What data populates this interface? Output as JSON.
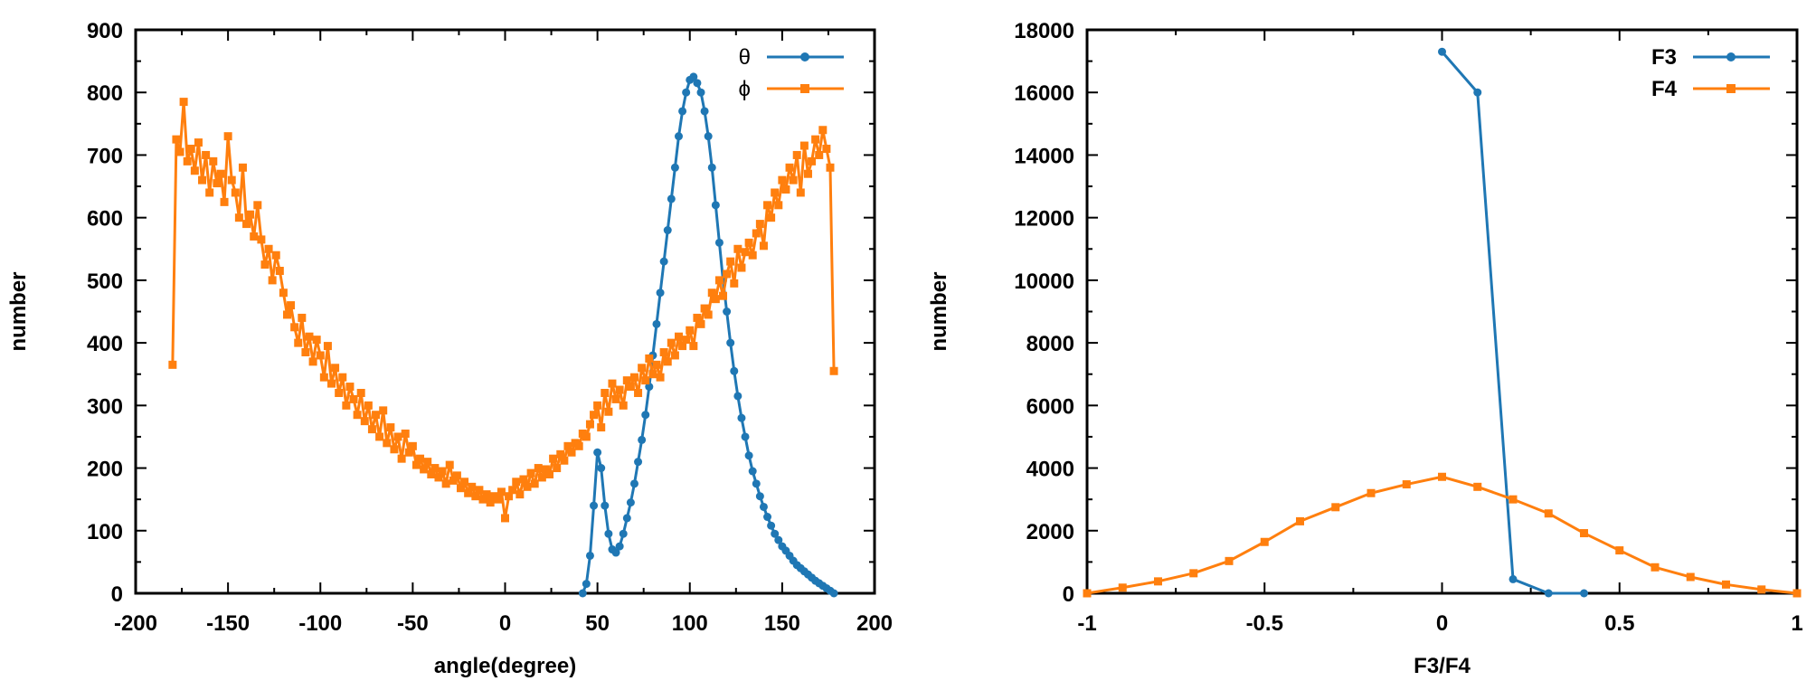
{
  "colors": {
    "blue": "#1f77b4",
    "orange": "#ff7f0e",
    "axis": "#000000"
  },
  "chart_data": [
    {
      "type": "line",
      "xlabel": "angle(degree)",
      "ylabel": "number",
      "xlim": [
        -200,
        200
      ],
      "ylim": [
        0,
        900
      ],
      "xticks": [
        "-200",
        "-150",
        "-100",
        "-50",
        "0",
        "50",
        "100",
        "150",
        "200"
      ],
      "yticks": [
        "0",
        "100",
        "200",
        "300",
        "400",
        "500",
        "600",
        "700",
        "800",
        "900"
      ],
      "legend_position": "top-right",
      "series": [
        {
          "name": "θ",
          "color": "#1f77b4",
          "marker": "circle",
          "x": [
            42,
            44,
            46,
            48,
            50,
            52,
            54,
            56,
            58,
            60,
            62,
            64,
            66,
            68,
            70,
            72,
            74,
            76,
            78,
            80,
            82,
            84,
            86,
            88,
            90,
            92,
            94,
            96,
            98,
            100,
            102,
            104,
            106,
            108,
            110,
            112,
            114,
            116,
            118,
            120,
            122,
            124,
            126,
            128,
            130,
            132,
            134,
            136,
            138,
            140,
            142,
            144,
            146,
            148,
            150,
            152,
            154,
            156,
            158,
            160,
            162,
            164,
            166,
            168,
            170,
            172,
            174,
            176,
            178
          ],
          "y": [
            0,
            15,
            60,
            140,
            225,
            200,
            140,
            95,
            70,
            65,
            75,
            95,
            120,
            145,
            175,
            210,
            245,
            285,
            330,
            380,
            430,
            480,
            530,
            580,
            630,
            680,
            730,
            770,
            800,
            820,
            825,
            815,
            800,
            770,
            730,
            680,
            620,
            560,
            500,
            450,
            400,
            355,
            315,
            280,
            250,
            220,
            195,
            175,
            155,
            138,
            122,
            108,
            95,
            85,
            75,
            68,
            60,
            52,
            45,
            40,
            35,
            30,
            25,
            20,
            16,
            12,
            8,
            4,
            0
          ]
        },
        {
          "name": "ϕ",
          "color": "#ff7f0e",
          "marker": "square",
          "x": [
            -180,
            -178,
            -176,
            -174,
            -172,
            -170,
            -168,
            -166,
            -164,
            -162,
            -160,
            -158,
            -156,
            -154,
            -152,
            -150,
            -148,
            -146,
            -144,
            -142,
            -140,
            -138,
            -136,
            -134,
            -132,
            -130,
            -128,
            -126,
            -124,
            -122,
            -120,
            -118,
            -116,
            -114,
            -112,
            -110,
            -108,
            -106,
            -104,
            -102,
            -100,
            -98,
            -96,
            -94,
            -92,
            -90,
            -88,
            -86,
            -84,
            -82,
            -80,
            -78,
            -76,
            -74,
            -72,
            -70,
            -68,
            -66,
            -64,
            -62,
            -60,
            -58,
            -56,
            -54,
            -52,
            -50,
            -48,
            -46,
            -44,
            -42,
            -40,
            -38,
            -36,
            -34,
            -32,
            -30,
            -28,
            -26,
            -24,
            -22,
            -20,
            -18,
            -16,
            -14,
            -12,
            -10,
            -8,
            -6,
            -4,
            -2,
            0,
            2,
            4,
            6,
            8,
            10,
            12,
            14,
            16,
            18,
            20,
            22,
            24,
            26,
            28,
            30,
            32,
            34,
            36,
            38,
            40,
            42,
            44,
            46,
            48,
            50,
            52,
            54,
            56,
            58,
            60,
            62,
            64,
            66,
            68,
            70,
            72,
            74,
            76,
            78,
            80,
            82,
            84,
            86,
            88,
            90,
            92,
            94,
            96,
            98,
            100,
            102,
            104,
            106,
            108,
            110,
            112,
            114,
            116,
            118,
            120,
            122,
            124,
            126,
            128,
            130,
            132,
            134,
            136,
            138,
            140,
            142,
            144,
            146,
            148,
            150,
            152,
            154,
            156,
            158,
            160,
            162,
            164,
            166,
            168,
            170,
            172,
            174,
            176,
            178
          ],
          "y": [
            365,
            725,
            705,
            785,
            690,
            710,
            675,
            720,
            660,
            700,
            640,
            690,
            655,
            670,
            625,
            730,
            660,
            640,
            600,
            680,
            590,
            605,
            570,
            620,
            565,
            525,
            550,
            500,
            540,
            515,
            480,
            445,
            460,
            425,
            400,
            440,
            385,
            410,
            370,
            405,
            380,
            345,
            395,
            335,
            360,
            320,
            345,
            300,
            330,
            310,
            285,
            320,
            275,
            300,
            262,
            285,
            250,
            292,
            240,
            265,
            230,
            250,
            215,
            255,
            225,
            235,
            205,
            215,
            198,
            210,
            190,
            200,
            185,
            195,
            175,
            205,
            180,
            188,
            168,
            178,
            160,
            170,
            155,
            165,
            150,
            158,
            145,
            155,
            150,
            162,
            120,
            155,
            165,
            178,
            158,
            182,
            170,
            192,
            175,
            200,
            185,
            198,
            190,
            215,
            200,
            222,
            212,
            235,
            225,
            240,
            235,
            255,
            250,
            270,
            285,
            300,
            265,
            320,
            290,
            335,
            310,
            325,
            300,
            340,
            330,
            345,
            320,
            360,
            340,
            375,
            350,
            365,
            345,
            385,
            370,
            400,
            380,
            410,
            395,
            405,
            420,
            395,
            440,
            430,
            455,
            445,
            480,
            470,
            500,
            475,
            510,
            530,
            495,
            550,
            520,
            545,
            560,
            540,
            575,
            590,
            555,
            620,
            600,
            640,
            620,
            660,
            645,
            680,
            660,
            700,
            640,
            715,
            670,
            690,
            725,
            700,
            740,
            710,
            680,
            355
          ]
        }
      ]
    },
    {
      "type": "line",
      "xlabel": "F3/F4",
      "ylabel": "number",
      "xlim": [
        -1,
        1
      ],
      "ylim": [
        0,
        18000
      ],
      "xticks": [
        "-1",
        "-0.5",
        "0",
        "0.5",
        "1"
      ],
      "yticks": [
        "0",
        "2000",
        "4000",
        "6000",
        "8000",
        "10000",
        "12000",
        "14000",
        "16000",
        "18000"
      ],
      "legend_position": "top-right",
      "series": [
        {
          "name": "F3",
          "color": "#1f77b4",
          "marker": "circle",
          "x": [
            0,
            0.1,
            0.2,
            0.3,
            0.4
          ],
          "y": [
            17300,
            16000,
            450,
            0,
            0
          ]
        },
        {
          "name": "F4",
          "color": "#ff7f0e",
          "marker": "square",
          "x": [
            -1,
            -0.9,
            -0.8,
            -0.7,
            -0.6,
            -0.5,
            -0.4,
            -0.3,
            -0.2,
            -0.1,
            0,
            0.1,
            0.2,
            0.3,
            0.4,
            0.5,
            0.6,
            0.7,
            0.8,
            0.9,
            1
          ],
          "y": [
            0,
            180,
            380,
            640,
            1030,
            1640,
            2300,
            2750,
            3200,
            3480,
            3720,
            3400,
            3000,
            2550,
            1920,
            1370,
            830,
            520,
            280,
            120,
            0
          ]
        }
      ]
    }
  ]
}
